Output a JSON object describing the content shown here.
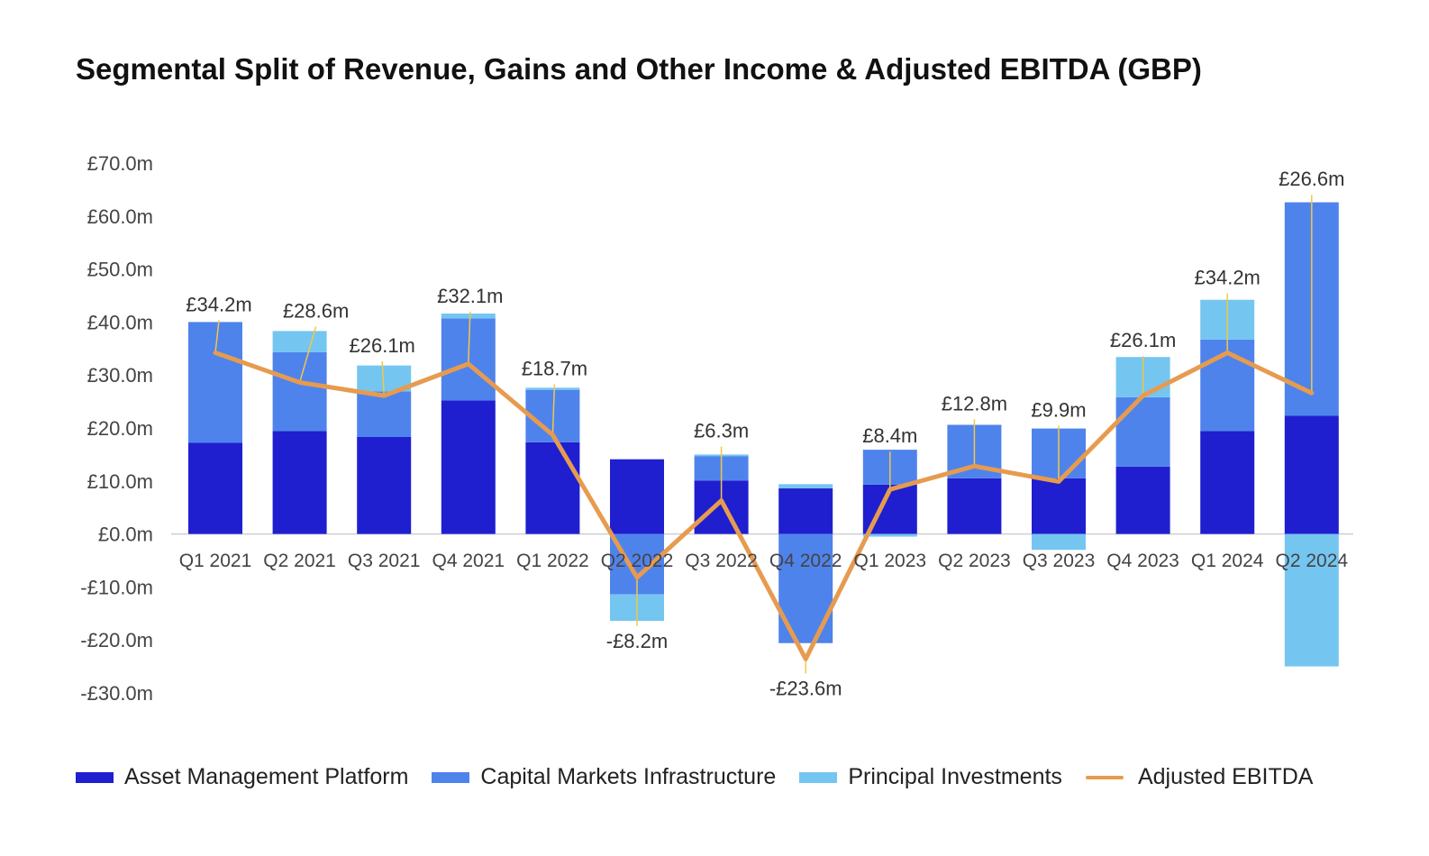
{
  "chart_data": {
    "type": "bar",
    "title": "Segmental Split of Revenue, Gains and Other Income & Adjusted EBITDA (GBP)",
    "xlabel": "",
    "ylabel": "",
    "ylim": [
      -30,
      70
    ],
    "yticks": [
      70,
      60,
      50,
      40,
      30,
      20,
      10,
      0,
      -10,
      -20,
      -30
    ],
    "ytick_labels": [
      "£70.0m",
      "£60.0m",
      "£50.0m",
      "£40.0m",
      "£30.0m",
      "£20.0m",
      "£10.0m",
      "£0.0m",
      "-£10.0m",
      "-£20.0m",
      "-£30.0m"
    ],
    "categories": [
      "Q1 2021",
      "Q2 2021",
      "Q3 2021",
      "Q4 2021",
      "Q1 2022",
      "Q2 2022",
      "Q3 2022",
      "Q4 2022",
      "Q1 2023",
      "Q2 2023",
      "Q3 2023",
      "Q4 2023",
      "Q1 2024",
      "Q2 2024"
    ],
    "series": [
      {
        "name": "Asset Management Platform",
        "kind": "bar",
        "color": "#1f1fcf",
        "values": [
          17.2,
          19.4,
          18.3,
          25.2,
          17.3,
          14.1,
          10.1,
          8.6,
          9.3,
          10.5,
          10.5,
          12.7,
          19.4,
          22.3
        ]
      },
      {
        "name": "Capital Markets Infrastructure",
        "kind": "bar",
        "color": "#4f83ec",
        "values": [
          22.8,
          14.9,
          8.6,
          15.5,
          9.9,
          -11.4,
          4.6,
          -20.6,
          6.6,
          10.1,
          9.4,
          13.1,
          17.3,
          40.3
        ]
      },
      {
        "name": "Principal Investments",
        "kind": "bar",
        "color": "#74c6f1",
        "values": [
          0,
          4.0,
          4.9,
          0.9,
          0.4,
          -5.0,
          0.3,
          0.8,
          -0.5,
          0,
          -3.0,
          7.6,
          7.5,
          -25.0
        ]
      },
      {
        "name": "Adjusted EBITDA",
        "kind": "line",
        "color": "#e69b4f",
        "values": [
          34.2,
          28.6,
          26.1,
          32.1,
          18.7,
          -8.2,
          6.3,
          -23.6,
          8.4,
          12.8,
          9.9,
          26.1,
          34.2,
          26.6
        ]
      }
    ],
    "data_labels": [
      "£34.2m",
      "£28.6m",
      "£26.1m",
      "£32.1m",
      "£18.7m",
      "-£8.2m",
      "£6.3m",
      "-£23.6m",
      "£8.4m",
      "£12.8m",
      "£9.9m",
      "£26.1m",
      "£34.2m",
      "£26.6m"
    ],
    "label_line_color": "#f2c744",
    "legend_position": "bottom"
  }
}
